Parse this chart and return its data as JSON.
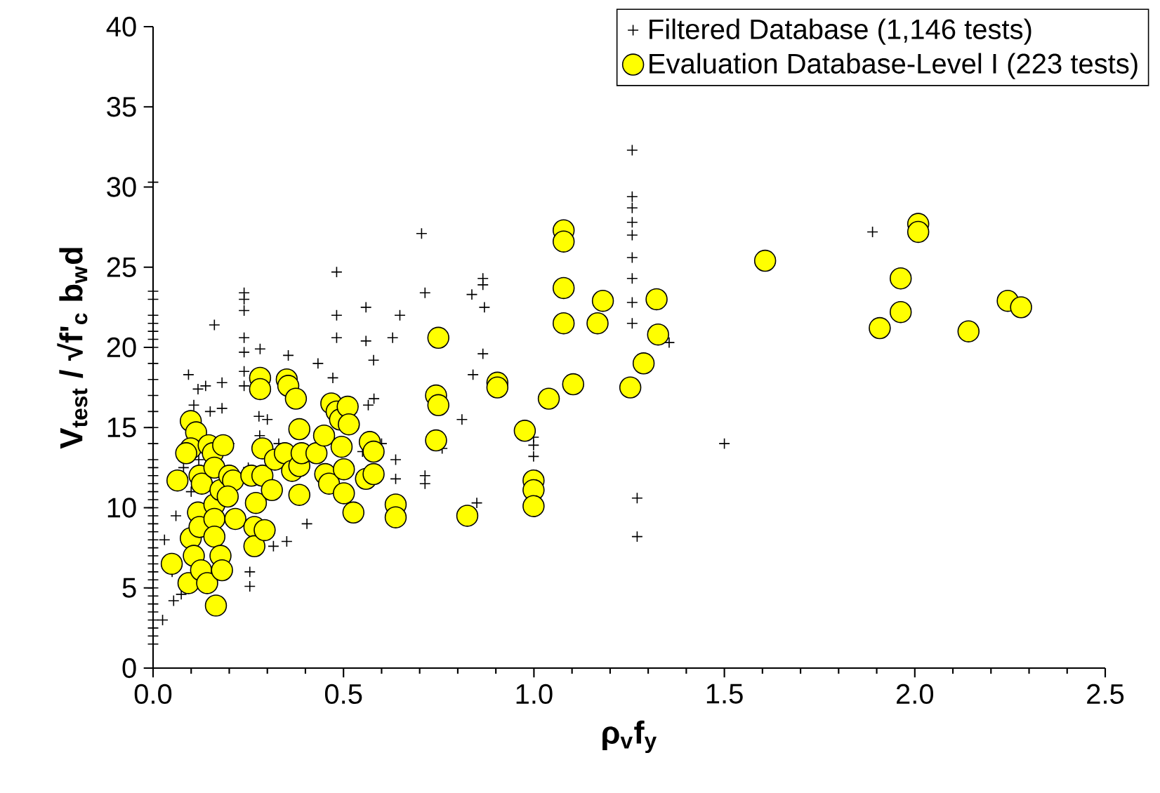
{
  "chart_data": {
    "type": "scatter",
    "xlabel": "**ρ$_{v}$f$_{y}$**",
    "ylabel": "**V$_{test}$ / √f'$_{c}$ b$_{w}$d**",
    "xlim": [
      0,
      2.5
    ],
    "ylim": [
      0,
      40
    ],
    "xticks": [
      {
        "value": 0,
        "label": "0.0"
      },
      {
        "value": 0.5,
        "label": "0.5"
      },
      {
        "value": 1,
        "label": "1.0"
      },
      {
        "value": 1.5,
        "label": "1.5"
      },
      {
        "value": 2,
        "label": "2.0"
      },
      {
        "value": 2.5,
        "label": "2.5"
      }
    ],
    "yticks": [
      0,
      5,
      10,
      15,
      20,
      25,
      30,
      35,
      40
    ],
    "legend": "top right",
    "series": [
      {
        "name": "Filtered Database (1,146 tests)",
        "color": "#000000",
        "marker": "cross",
        "x": [
          0,
          0,
          0,
          0,
          0,
          0,
          0,
          0,
          0,
          0,
          0,
          0,
          0,
          0,
          0,
          0,
          0,
          0,
          0,
          0,
          0,
          0,
          0,
          0,
          0,
          0,
          0,
          0,
          0,
          0,
          0,
          0,
          0,
          0,
          0,
          0,
          0,
          0,
          0.025,
          0.054,
          0.074,
          0.093,
          0.107,
          0.118,
          0.138,
          0.161,
          0.181,
          0.181,
          0.239,
          0.239,
          0.239,
          0.239,
          0.239,
          0.239,
          0.239,
          0.254,
          0.254,
          0.281,
          0.278,
          0.316,
          0.351,
          0.355,
          0.404,
          0.433,
          0.482,
          0.482,
          0.482,
          0.472,
          0.559,
          0.559,
          0.579,
          0.565,
          0.629,
          0.648,
          0.637,
          0.637,
          0.705,
          0.714,
          0.714,
          0.714,
          0.811,
          0.837,
          0.84,
          0.85,
          0.866,
          0.866,
          0.87,
          0.866,
          0.999,
          0.999,
          0.999,
          1.258,
          1.258,
          1.258,
          1.258,
          1.258,
          1.258,
          1.258,
          1.258,
          1.258,
          1.271,
          1.271,
          1.355,
          1.5,
          1.889,
          0.759,
          0.03,
          0.05,
          0.06,
          0.08,
          0.1,
          0.12,
          0.15,
          0.2,
          0.25,
          0.28,
          0.3,
          0.33,
          0.55,
          0.58,
          0.6
        ],
        "values": [
          1.5,
          2,
          2.5,
          3,
          3.5,
          4,
          4.5,
          5,
          5.5,
          6,
          6.5,
          7,
          7.5,
          8,
          8.5,
          9,
          9.5,
          10,
          10.5,
          11,
          11.5,
          12,
          12.5,
          13,
          14,
          15,
          16,
          17,
          18,
          19,
          20,
          20.5,
          21,
          21.5,
          22,
          23,
          23.5,
          30.3,
          3.0,
          4.2,
          4.6,
          18.3,
          16.4,
          17.4,
          17.6,
          21.4,
          17.8,
          16.2,
          23.4,
          23.0,
          22.3,
          20.6,
          19.7,
          18.5,
          17.6,
          6.0,
          5.1,
          19.9,
          15.7,
          7.6,
          7.9,
          19.5,
          9.0,
          19.0,
          24.7,
          22.0,
          20.6,
          18.1,
          22.5,
          20.4,
          19.2,
          16.4,
          20.6,
          22.0,
          13.0,
          11.8,
          27.1,
          23.4,
          12.0,
          11.5,
          15.5,
          23.3,
          18.3,
          10.3,
          24.3,
          23.9,
          22.5,
          19.6,
          14.4,
          13.9,
          13.2,
          32.3,
          29.4,
          28.7,
          27.8,
          27.0,
          25.6,
          24.3,
          22.8,
          21.5,
          10.6,
          8.2,
          20.3,
          14.0,
          27.2,
          13.7,
          8,
          6,
          9.5,
          12.5,
          11,
          13,
          16,
          14,
          12.5,
          14.5,
          15.5,
          14,
          13.5,
          16.8,
          14
        ]
      },
      {
        "name": "Evaluation Database-Level I (223 tests)",
        "color": "#ffff00",
        "marker": "circle",
        "x": [
          0.064,
          0.049,
          0.093,
          0.099,
          0.107,
          0.099,
          0.113,
          0.099,
          0.087,
          0.122,
          0.128,
          0.118,
          0.122,
          0.126,
          0.142,
          0.146,
          0.157,
          0.161,
          0.161,
          0.161,
          0.161,
          0.165,
          0.177,
          0.181,
          0.177,
          0.184,
          0.2,
          0.21,
          0.216,
          0.196,
          0.258,
          0.266,
          0.266,
          0.27,
          0.281,
          0.281,
          0.287,
          0.287,
          0.293,
          0.312,
          0.32,
          0.346,
          0.351,
          0.355,
          0.365,
          0.375,
          0.384,
          0.384,
          0.384,
          0.39,
          0.429,
          0.449,
          0.452,
          0.462,
          0.468,
          0.482,
          0.491,
          0.495,
          0.501,
          0.501,
          0.511,
          0.514,
          0.526,
          0.559,
          0.569,
          0.579,
          0.579,
          0.637,
          0.637,
          0.749,
          0.743,
          0.749,
          0.743,
          0.825,
          0.904,
          0.904,
          0.976,
          0.999,
          0.999,
          0.999,
          1.039,
          1.078,
          1.078,
          1.078,
          1.078,
          1.103,
          1.167,
          1.181,
          1.253,
          1.288,
          1.322,
          1.326,
          1.607,
          1.908,
          1.963,
          1.963,
          2.009,
          2.009,
          2.141,
          2.244,
          2.279
        ],
        "values": [
          11.7,
          6.5,
          5.3,
          8.1,
          7.0,
          15.4,
          14.7,
          13.7,
          13.4,
          12.0,
          11.5,
          9.7,
          8.8,
          6.1,
          5.3,
          13.9,
          13.4,
          12.5,
          10.2,
          9.3,
          8.2,
          3.9,
          7.0,
          6.1,
          11.1,
          13.9,
          12.0,
          11.7,
          9.3,
          10.7,
          12.0,
          8.8,
          7.6,
          10.3,
          18.1,
          17.4,
          13.7,
          12.0,
          8.6,
          11.1,
          13.0,
          13.4,
          18.0,
          17.6,
          12.3,
          16.8,
          14.9,
          12.6,
          10.8,
          13.4,
          13.4,
          14.5,
          12.1,
          11.5,
          16.5,
          16.0,
          15.5,
          13.8,
          12.4,
          10.9,
          16.3,
          15.2,
          9.7,
          11.8,
          14.1,
          13.5,
          12.1,
          10.2,
          9.4,
          20.6,
          17.0,
          16.4,
          14.2,
          9.5,
          17.8,
          17.5,
          14.8,
          11.7,
          11.1,
          10.1,
          16.8,
          27.3,
          26.6,
          23.7,
          21.5,
          17.7,
          21.5,
          22.9,
          17.5,
          19.0,
          23.0,
          20.8,
          25.4,
          21.2,
          24.3,
          22.2,
          27.7,
          27.2,
          21.0,
          22.9,
          22.5
        ]
      }
    ]
  }
}
